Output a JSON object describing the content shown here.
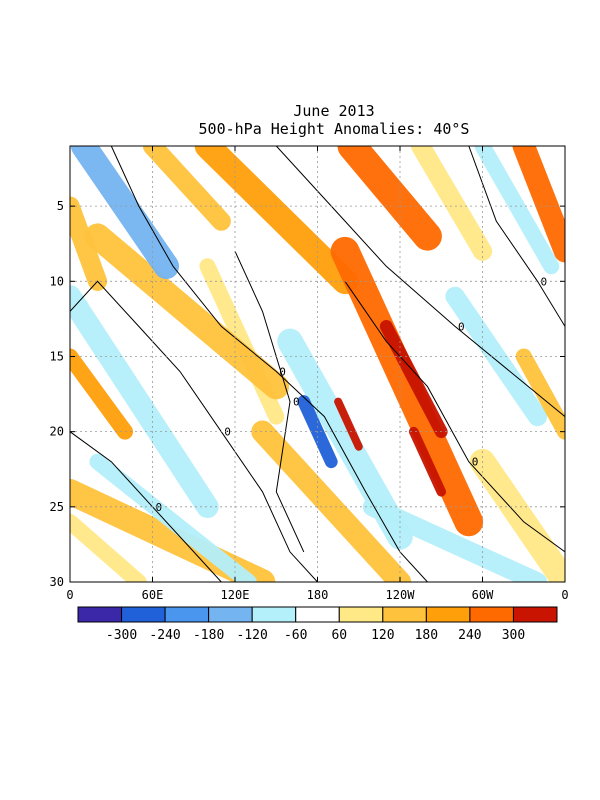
{
  "chart_data": {
    "type": "heatmap",
    "title": "June 2013",
    "subtitle": "500-hPa Height Anomalies: 40°S",
    "xlabel": "",
    "ylabel": "",
    "x_ticks": [
      "0",
      "60E",
      "120E",
      "180",
      "120W",
      "60W",
      "0"
    ],
    "x_range_deg": [
      0,
      360
    ],
    "y_ticks": [
      "5",
      "10",
      "15",
      "20",
      "25",
      "30"
    ],
    "y_range_day": [
      1,
      30
    ],
    "y_reversed": true,
    "grid": "dotted",
    "contour_label": "0",
    "colorbar": {
      "labels": [
        "-300",
        "-240",
        "-180",
        "-120",
        "-60",
        "60",
        "120",
        "180",
        "240",
        "300"
      ],
      "colors": [
        "#3b28a8",
        "#2060d8",
        "#4a96ee",
        "#74b4f0",
        "#b4f0fa",
        "#ffffff",
        "#ffe886",
        "#ffc23c",
        "#ffa00a",
        "#ff6a00",
        "#c81400"
      ]
    },
    "anomaly_bands": [
      {
        "start_lon": 10,
        "start_day": 1,
        "end_lon": 70,
        "end_day": 9,
        "width": 16,
        "value": -180
      },
      {
        "start_lon": 60,
        "start_day": 1,
        "end_lon": 110,
        "end_day": 6,
        "width": 12,
        "value": 120
      },
      {
        "start_lon": 100,
        "start_day": 1,
        "end_lon": 200,
        "end_day": 10,
        "width": 16,
        "value": 180
      },
      {
        "start_lon": 120,
        "start_day": 3,
        "end_lon": 140,
        "end_day": 6,
        "width": 8,
        "value": -60
      },
      {
        "start_lon": 205,
        "start_day": 1,
        "end_lon": 260,
        "end_day": 7,
        "width": 18,
        "value": 240
      },
      {
        "start_lon": 255,
        "start_day": 1,
        "end_lon": 300,
        "end_day": 8,
        "width": 12,
        "value": 60
      },
      {
        "start_lon": 300,
        "start_day": 1,
        "end_lon": 350,
        "end_day": 9,
        "width": 10,
        "value": -120
      },
      {
        "start_lon": 330,
        "start_day": 1,
        "end_lon": 360,
        "end_day": 8,
        "width": 14,
        "value": 240
      },
      {
        "start_lon": 0,
        "start_day": 5,
        "end_lon": 20,
        "end_day": 10,
        "width": 12,
        "value": 120
      },
      {
        "start_lon": 0,
        "start_day": 11,
        "end_lon": 100,
        "end_day": 25,
        "width": 14,
        "value": -120
      },
      {
        "start_lon": 0,
        "start_day": 15,
        "end_lon": 40,
        "end_day": 20,
        "width": 10,
        "value": 180
      },
      {
        "start_lon": 20,
        "start_day": 7,
        "end_lon": 150,
        "end_day": 17,
        "width": 16,
        "value": 120
      },
      {
        "start_lon": 100,
        "start_day": 9,
        "end_lon": 150,
        "end_day": 19,
        "width": 10,
        "value": 60
      },
      {
        "start_lon": 160,
        "start_day": 14,
        "end_lon": 240,
        "end_day": 27,
        "width": 16,
        "value": -120
      },
      {
        "start_lon": 170,
        "start_day": 18,
        "end_lon": 190,
        "end_day": 22,
        "width": 8,
        "value": -300
      },
      {
        "start_lon": 200,
        "start_day": 8,
        "end_lon": 290,
        "end_day": 26,
        "width": 18,
        "value": 240
      },
      {
        "start_lon": 230,
        "start_day": 13,
        "end_lon": 270,
        "end_day": 20,
        "width": 8,
        "value": 300
      },
      {
        "start_lon": 250,
        "start_day": 20,
        "end_lon": 270,
        "end_day": 24,
        "width": 6,
        "value": 300
      },
      {
        "start_lon": 195,
        "start_day": 18,
        "end_lon": 210,
        "end_day": 21,
        "width": 5,
        "value": 300
      },
      {
        "start_lon": 280,
        "start_day": 11,
        "end_lon": 340,
        "end_day": 19,
        "width": 12,
        "value": -120
      },
      {
        "start_lon": 270,
        "start_day": 20,
        "end_lon": 330,
        "end_day": 25,
        "width": 14,
        "value": -60
      },
      {
        "start_lon": 330,
        "start_day": 15,
        "end_lon": 360,
        "end_day": 20,
        "width": 10,
        "value": 120
      },
      {
        "start_lon": 0,
        "start_day": 24,
        "end_lon": 140,
        "end_day": 30,
        "width": 16,
        "value": 120
      },
      {
        "start_lon": 20,
        "start_day": 22,
        "end_lon": 130,
        "end_day": 30,
        "width": 10,
        "value": -120
      },
      {
        "start_lon": 0,
        "start_day": 26,
        "end_lon": 50,
        "end_day": 30,
        "width": 10,
        "value": 60
      },
      {
        "start_lon": 220,
        "start_day": 25,
        "end_lon": 340,
        "end_day": 30,
        "width": 12,
        "value": -120
      },
      {
        "start_lon": 300,
        "start_day": 22,
        "end_lon": 360,
        "end_day": 30,
        "width": 16,
        "value": 60
      },
      {
        "start_lon": 140,
        "start_day": 20,
        "end_lon": 240,
        "end_day": 30,
        "width": 14,
        "value": 120
      }
    ],
    "zero_contours": [
      [
        [
          30,
          1
        ],
        [
          50,
          5
        ],
        [
          75,
          9
        ],
        [
          110,
          13
        ],
        [
          150,
          16
        ],
        [
          185,
          19
        ],
        [
          215,
          24
        ],
        [
          240,
          28
        ],
        [
          260,
          30
        ]
      ],
      [
        [
          0,
          12
        ],
        [
          20,
          10
        ],
        [
          50,
          13
        ],
        [
          80,
          16
        ],
        [
          110,
          20
        ],
        [
          140,
          24
        ],
        [
          160,
          28
        ],
        [
          180,
          30
        ]
      ],
      [
        [
          0,
          20
        ],
        [
          30,
          22
        ],
        [
          60,
          25
        ],
        [
          90,
          28
        ],
        [
          110,
          30
        ]
      ],
      [
        [
          150,
          1
        ],
        [
          190,
          5
        ],
        [
          230,
          9
        ],
        [
          280,
          13
        ],
        [
          320,
          16
        ],
        [
          360,
          19
        ]
      ],
      [
        [
          290,
          1
        ],
        [
          310,
          6
        ],
        [
          340,
          10
        ],
        [
          360,
          13
        ]
      ],
      [
        [
          200,
          10
        ],
        [
          230,
          14
        ],
        [
          260,
          17
        ],
        [
          290,
          22
        ],
        [
          330,
          26
        ],
        [
          360,
          28
        ]
      ],
      [
        [
          120,
          8
        ],
        [
          140,
          12
        ],
        [
          160,
          18
        ],
        [
          150,
          24
        ],
        [
          170,
          28
        ]
      ]
    ]
  }
}
